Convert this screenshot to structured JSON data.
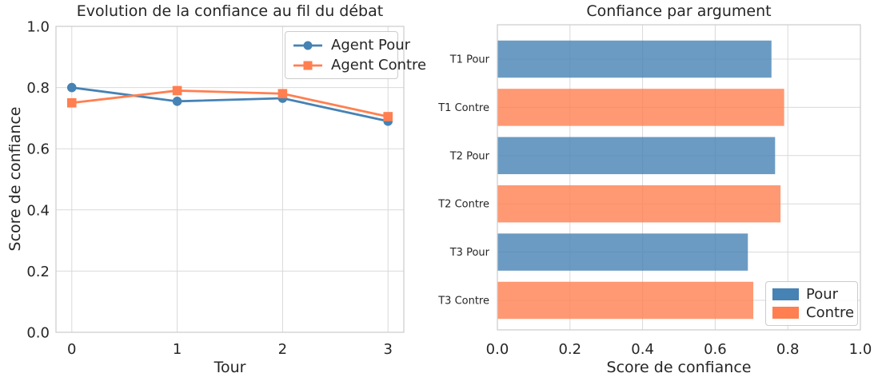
{
  "figure": {
    "background": "#ffffff",
    "text_color": "#262626",
    "grid_color": "#d9d9d9",
    "spine_color": "#cccccc"
  },
  "colors": {
    "pour": "#4682B4",
    "contre": "#FF7F50",
    "pour_bar": "rgba(70,130,180,0.8)",
    "contre_bar": "rgba(255,127,80,0.8)"
  },
  "chart_data": [
    {
      "type": "line",
      "title": "Evolution de la confiance au fil du débat",
      "xlabel": "Tour",
      "ylabel": "Score de confiance",
      "x": [
        0,
        1,
        2,
        3
      ],
      "xtick_labels": [
        "0",
        "1",
        "2",
        "3"
      ],
      "ytick_values": [
        0.0,
        0.2,
        0.4,
        0.6,
        0.8,
        1.0
      ],
      "ytick_labels": [
        "0.0",
        "0.2",
        "0.4",
        "0.6",
        "0.8",
        "1.0"
      ],
      "xlim": [
        -0.15,
        3.15
      ],
      "ylim": [
        0.0,
        1.0
      ],
      "grid": true,
      "legend_position": "upper right",
      "series": [
        {
          "name": "Agent Pour",
          "marker": "circle",
          "color_key": "pour",
          "values": [
            0.8,
            0.755,
            0.765,
            0.69
          ]
        },
        {
          "name": "Agent Contre",
          "marker": "square",
          "color_key": "contre",
          "values": [
            0.75,
            0.79,
            0.78,
            0.705
          ]
        }
      ]
    },
    {
      "type": "bar",
      "orientation": "horizontal",
      "title": "Confiance par argument",
      "xlabel": "Score de confiance",
      "categories": [
        "T1 Pour",
        "T1 Contre",
        "T2 Pour",
        "T2 Contre",
        "T3 Pour",
        "T3 Contre"
      ],
      "values": [
        0.755,
        0.79,
        0.765,
        0.78,
        0.69,
        0.705
      ],
      "bar_color_keys": [
        "pour_bar",
        "contre_bar",
        "pour_bar",
        "contre_bar",
        "pour_bar",
        "contre_bar"
      ],
      "xtick_values": [
        0.0,
        0.2,
        0.4,
        0.6,
        0.8,
        1.0
      ],
      "xtick_labels": [
        "0.0",
        "0.2",
        "0.4",
        "0.6",
        "0.8",
        "1.0"
      ],
      "xlim": [
        0.0,
        1.0
      ],
      "grid": true,
      "legend_position": "lower right",
      "legend": [
        {
          "label": "Pour",
          "color_key": "pour"
        },
        {
          "label": "Contre",
          "color_key": "contre"
        }
      ]
    }
  ]
}
